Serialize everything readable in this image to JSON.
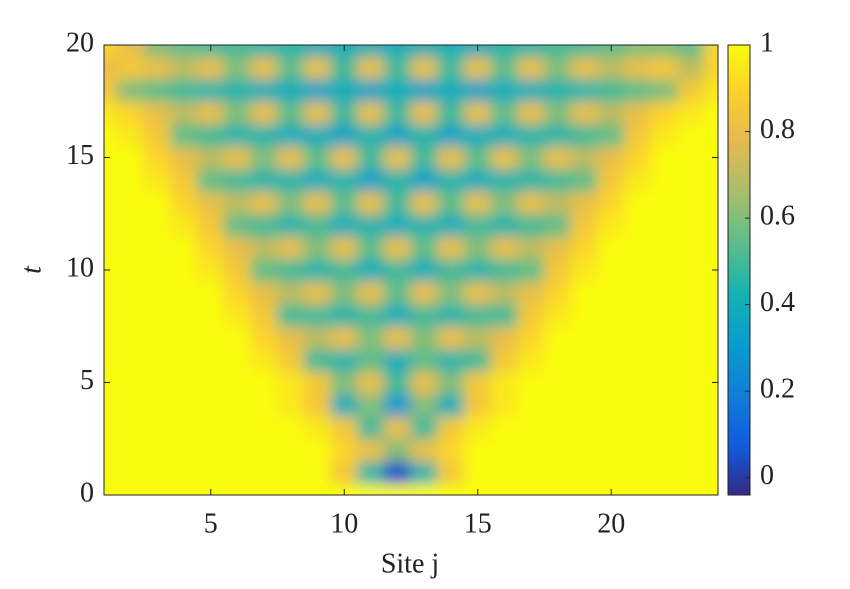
{
  "chart_data": {
    "type": "heatmap",
    "xlabel": "Site j",
    "ylabel": "t",
    "x": [
      1,
      2,
      3,
      4,
      5,
      6,
      7,
      8,
      9,
      10,
      11,
      12,
      13,
      14,
      15,
      16,
      17,
      18,
      19,
      20,
      21,
      22,
      23,
      24
    ],
    "y": [
      0,
      1,
      2,
      3,
      4,
      5,
      6,
      7,
      8,
      9,
      10,
      11,
      12,
      13,
      14,
      15,
      16,
      17,
      18,
      19,
      20
    ],
    "z": [
      [
        1,
        1,
        1,
        1,
        1,
        1,
        1,
        1,
        1,
        1,
        1,
        1,
        1,
        1,
        1,
        1,
        1,
        1,
        1,
        1,
        1,
        1,
        1,
        1
      ],
      [
        1,
        1,
        1,
        1,
        1,
        1,
        1,
        1,
        1,
        0.85,
        0.45,
        0.05,
        0.45,
        0.85,
        1,
        1,
        1,
        1,
        1,
        1,
        1,
        1,
        1,
        1
      ],
      [
        1,
        1,
        1,
        1,
        1,
        1,
        1,
        1,
        1,
        0.9,
        0.8,
        0.6,
        0.8,
        0.9,
        1,
        1,
        1,
        1,
        1,
        1,
        1,
        1,
        1,
        1
      ],
      [
        1,
        1,
        1,
        1,
        1,
        1,
        1,
        1,
        0.95,
        0.85,
        0.5,
        0.8,
        0.5,
        0.85,
        0.95,
        1,
        1,
        1,
        1,
        1,
        1,
        1,
        1,
        1
      ],
      [
        1,
        1,
        1,
        1,
        1,
        1,
        1,
        0.95,
        0.85,
        0.4,
        0.6,
        0.3,
        0.6,
        0.4,
        0.85,
        0.95,
        1,
        1,
        1,
        1,
        1,
        1,
        1,
        1
      ],
      [
        1,
        1,
        1,
        1,
        1,
        1,
        1,
        0.95,
        0.85,
        0.6,
        0.8,
        0.5,
        0.8,
        0.6,
        0.85,
        0.95,
        1,
        1,
        1,
        1,
        1,
        1,
        1,
        1
      ],
      [
        1,
        1,
        1,
        1,
        1,
        1,
        0.95,
        0.85,
        0.5,
        0.45,
        0.55,
        0.4,
        0.55,
        0.45,
        0.5,
        0.85,
        0.95,
        1,
        1,
        1,
        1,
        1,
        1,
        1
      ],
      [
        1,
        1,
        1,
        1,
        1,
        1,
        0.9,
        0.8,
        0.7,
        0.8,
        0.6,
        0.8,
        0.6,
        0.8,
        0.7,
        0.8,
        0.9,
        1,
        1,
        1,
        1,
        1,
        1,
        1
      ],
      [
        1,
        1,
        1,
        1,
        1,
        0.95,
        0.85,
        0.5,
        0.5,
        0.45,
        0.5,
        0.4,
        0.5,
        0.45,
        0.5,
        0.5,
        0.85,
        0.95,
        1,
        1,
        1,
        1,
        1,
        1
      ],
      [
        1,
        1,
        1,
        1,
        1,
        0.9,
        0.8,
        0.7,
        0.8,
        0.6,
        0.8,
        0.55,
        0.8,
        0.6,
        0.8,
        0.7,
        0.8,
        0.9,
        1,
        1,
        1,
        1,
        1,
        1
      ],
      [
        1,
        1,
        1,
        1,
        0.95,
        0.85,
        0.55,
        0.5,
        0.45,
        0.5,
        0.4,
        0.5,
        0.4,
        0.5,
        0.45,
        0.5,
        0.55,
        0.85,
        0.95,
        1,
        1,
        1,
        1,
        1
      ],
      [
        1,
        1,
        1,
        1,
        0.9,
        0.8,
        0.7,
        0.8,
        0.6,
        0.8,
        0.55,
        0.8,
        0.55,
        0.8,
        0.6,
        0.8,
        0.7,
        0.8,
        0.9,
        1,
        1,
        1,
        1,
        1
      ],
      [
        1,
        1,
        1,
        0.95,
        0.85,
        0.55,
        0.5,
        0.45,
        0.5,
        0.4,
        0.45,
        0.4,
        0.45,
        0.4,
        0.5,
        0.45,
        0.5,
        0.55,
        0.85,
        0.95,
        1,
        1,
        1,
        1
      ],
      [
        1,
        1,
        1,
        0.9,
        0.8,
        0.7,
        0.8,
        0.6,
        0.8,
        0.55,
        0.8,
        0.5,
        0.8,
        0.55,
        0.8,
        0.6,
        0.8,
        0.7,
        0.8,
        0.9,
        1,
        1,
        1,
        1
      ],
      [
        1,
        1,
        0.95,
        0.85,
        0.55,
        0.5,
        0.45,
        0.45,
        0.4,
        0.45,
        0.35,
        0.45,
        0.35,
        0.45,
        0.4,
        0.45,
        0.45,
        0.5,
        0.55,
        0.85,
        0.95,
        1,
        1,
        1
      ],
      [
        1,
        1,
        0.9,
        0.8,
        0.7,
        0.8,
        0.6,
        0.8,
        0.55,
        0.8,
        0.5,
        0.8,
        0.5,
        0.8,
        0.55,
        0.8,
        0.6,
        0.8,
        0.7,
        0.8,
        0.9,
        1,
        1,
        1
      ],
      [
        1,
        0.95,
        0.85,
        0.55,
        0.5,
        0.45,
        0.45,
        0.4,
        0.4,
        0.35,
        0.45,
        0.35,
        0.45,
        0.35,
        0.4,
        0.4,
        0.45,
        0.45,
        0.5,
        0.55,
        0.85,
        0.95,
        1,
        1
      ],
      [
        0.95,
        0.9,
        0.8,
        0.7,
        0.8,
        0.6,
        0.8,
        0.55,
        0.8,
        0.5,
        0.8,
        0.5,
        0.8,
        0.5,
        0.8,
        0.55,
        0.8,
        0.6,
        0.8,
        0.7,
        0.8,
        0.9,
        0.95,
        1
      ],
      [
        0.85,
        0.6,
        0.55,
        0.5,
        0.45,
        0.45,
        0.4,
        0.4,
        0.35,
        0.4,
        0.35,
        0.4,
        0.35,
        0.4,
        0.35,
        0.4,
        0.4,
        0.45,
        0.45,
        0.5,
        0.55,
        0.6,
        0.85,
        0.95
      ],
      [
        0.8,
        0.85,
        0.8,
        0.7,
        0.8,
        0.6,
        0.8,
        0.55,
        0.8,
        0.5,
        0.8,
        0.5,
        0.8,
        0.5,
        0.8,
        0.55,
        0.8,
        0.6,
        0.8,
        0.7,
        0.8,
        0.85,
        0.7,
        0.9
      ],
      [
        0.9,
        0.8,
        0.6,
        0.55,
        0.5,
        0.5,
        0.45,
        0.45,
        0.4,
        0.4,
        0.4,
        0.4,
        0.4,
        0.4,
        0.4,
        0.45,
        0.45,
        0.5,
        0.5,
        0.55,
        0.6,
        0.6,
        0.55,
        0.9
      ]
    ],
    "xlim": [
      1,
      24
    ],
    "ylim": [
      0,
      20
    ],
    "xticks": [
      5,
      10,
      15,
      20
    ],
    "yticks": [
      0,
      5,
      10,
      15,
      20
    ],
    "clim": [
      -0.04,
      1
    ],
    "cticks": [
      0,
      0.2,
      0.4,
      0.6,
      0.8,
      1
    ],
    "colormap": [
      "#352a87",
      "#0f5cdd",
      "#127dd8",
      "#079ccf",
      "#15b1b4",
      "#59bd8c",
      "#a5be6b",
      "#e1b952",
      "#fcce2e",
      "#f9fb0e"
    ]
  }
}
